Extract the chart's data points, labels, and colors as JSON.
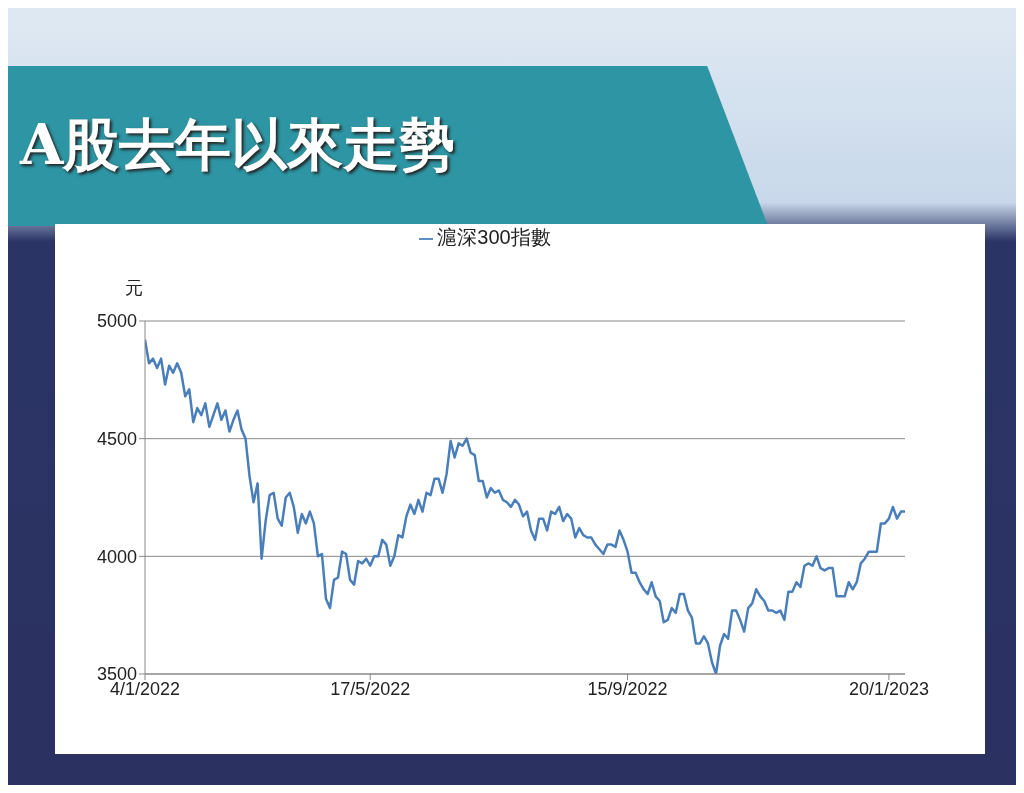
{
  "chart_data": {
    "type": "line",
    "title": "A股去年以來走勢",
    "ylabel": "元",
    "categories": [
      "4/1/2022",
      null,
      null,
      null,
      null,
      null,
      null,
      null,
      null,
      null,
      null,
      null,
      null,
      null,
      null,
      null,
      null,
      null,
      null,
      null,
      null,
      null,
      null,
      null,
      null,
      null,
      null,
      null,
      null,
      null,
      null,
      null,
      null,
      null,
      null,
      null,
      null,
      null,
      null,
      null,
      null,
      null,
      null,
      null,
      null,
      null,
      null,
      null,
      null,
      null,
      null,
      null,
      null,
      null,
      null,
      null,
      "17/5/2022",
      null,
      null,
      null,
      null,
      null,
      null,
      null,
      null,
      null,
      null,
      null,
      null,
      null,
      null,
      null,
      null,
      null,
      null,
      null,
      null,
      null,
      null,
      null,
      null,
      null,
      null,
      null,
      null,
      null,
      null,
      null,
      null,
      null,
      null,
      null,
      null,
      null,
      null,
      null,
      null,
      null,
      null,
      null,
      null,
      null,
      null,
      null,
      null,
      null,
      null,
      null,
      null,
      null,
      null,
      null,
      null,
      null,
      null,
      null,
      null,
      null,
      null,
      null,
      "15/9/2022",
      null,
      null,
      null,
      null,
      null,
      null,
      null,
      null,
      null,
      null,
      null,
      null,
      null,
      null,
      null,
      null,
      null,
      null,
      null,
      null,
      null,
      null,
      null,
      null,
      null,
      null,
      null,
      null,
      null,
      null,
      null,
      null,
      null,
      null,
      null,
      null,
      null,
      null,
      null,
      null,
      null,
      null,
      null,
      null,
      null,
      null,
      null,
      null,
      null,
      null,
      null,
      null,
      null,
      null,
      null,
      null,
      null,
      null,
      null,
      null,
      null,
      null,
      null,
      null,
      "20/1/2023",
      null,
      null,
      null,
      null
    ],
    "series": [
      {
        "name": "滬深300指數",
        "color": "#4a7ebb",
        "values": [
          4920,
          4820,
          4840,
          4800,
          4840,
          4730,
          4810,
          4780,
          4820,
          4780,
          4680,
          4710,
          4570,
          4630,
          4600,
          4650,
          4550,
          4600,
          4650,
          4580,
          4620,
          4530,
          4580,
          4620,
          4540,
          4500,
          4340,
          4230,
          4310,
          3990,
          4150,
          4260,
          4270,
          4160,
          4130,
          4250,
          4270,
          4210,
          4100,
          4180,
          4140,
          4190,
          4140,
          4000,
          4010,
          3820,
          3780,
          3900,
          3910,
          4020,
          4010,
          3900,
          3880,
          3980,
          3970,
          3990,
          3960,
          4000,
          4000,
          4070,
          4050,
          3960,
          4000,
          4090,
          4080,
          4170,
          4220,
          4180,
          4240,
          4190,
          4270,
          4260,
          4330,
          4330,
          4270,
          4350,
          4490,
          4420,
          4480,
          4470,
          4500,
          4440,
          4430,
          4320,
          4320,
          4250,
          4290,
          4270,
          4280,
          4240,
          4230,
          4210,
          4240,
          4220,
          4170,
          4190,
          4110,
          4070,
          4160,
          4160,
          4110,
          4190,
          4180,
          4210,
          4150,
          4180,
          4160,
          4080,
          4120,
          4090,
          4080,
          4080,
          4050,
          4030,
          4010,
          4050,
          4050,
          4040,
          4110,
          4070,
          4020,
          3930,
          3930,
          3890,
          3860,
          3840,
          3890,
          3830,
          3810,
          3720,
          3730,
          3780,
          3760,
          3840,
          3840,
          3770,
          3740,
          3630,
          3630,
          3660,
          3630,
          3550,
          3500,
          3620,
          3670,
          3650,
          3770,
          3770,
          3730,
          3680,
          3780,
          3800,
          3860,
          3830,
          3810,
          3770,
          3770,
          3760,
          3770,
          3730,
          3850,
          3850,
          3890,
          3870,
          3960,
          3970,
          3960,
          4000,
          3950,
          3940,
          3950,
          3950,
          3830,
          3830,
          3830,
          3890,
          3860,
          3890,
          3970,
          3990,
          4020,
          4020,
          4020,
          4140,
          4140,
          4160,
          4210,
          4160,
          4190,
          4190
        ]
      }
    ],
    "ylim": [
      3500,
      5000
    ],
    "yticks": [
      3500,
      4000,
      4500,
      5000
    ],
    "grid": "y",
    "legend": "top",
    "marker": "none",
    "line_style": "solid"
  }
}
